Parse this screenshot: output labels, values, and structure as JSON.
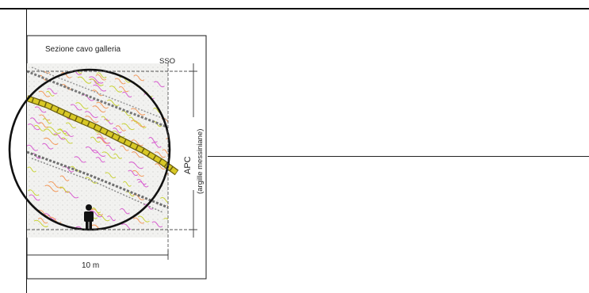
{
  "figure": {
    "title": "Sezione cavo galleria",
    "orientation_label": "SSO",
    "unit_label": "APC",
    "unit_sublabel": "(argille messiniane)",
    "scale_label": "10 m"
  },
  "colors": {
    "frame": "#1a1a1a",
    "tunnel_outline": "#111111",
    "matrix_background": "#f1f1ef",
    "fracture_band": "#d4c521",
    "flow_lines": [
      "#d85fd0",
      "#c9d33a",
      "#f39a5c"
    ],
    "shear_zone": "#777777"
  },
  "icons": [
    "person-scale-icon"
  ]
}
